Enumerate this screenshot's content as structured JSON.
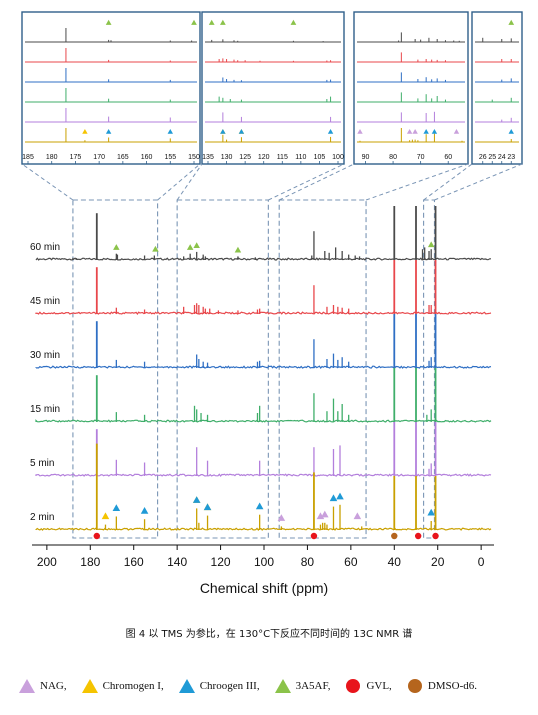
{
  "chart_data": {
    "type": "line",
    "xlabel": "Chemical shift (ppm)",
    "xlim": [
      205,
      -5
    ],
    "x_ticks": [
      200,
      180,
      160,
      140,
      120,
      100,
      80,
      60,
      40,
      20,
      0
    ],
    "series": [
      {
        "name": "60 min",
        "color": "#4a4a4a"
      },
      {
        "name": "45 min",
        "color": "#e8474b"
      },
      {
        "name": "30 min",
        "color": "#2f6fc4"
      },
      {
        "name": "15 min",
        "color": "#3fae6a"
      },
      {
        "name": "5 min",
        "color": "#b37fdc"
      },
      {
        "name": "2 min",
        "color": "#c9a000"
      }
    ],
    "peaks": {
      "60 min": [
        [
          188,
          0.12
        ],
        [
          186.5,
          0.1
        ],
        [
          177,
          2.6
        ],
        [
          168,
          0.35
        ],
        [
          167.5,
          0.3
        ],
        [
          155,
          0.25
        ],
        [
          150.5,
          0.25
        ],
        [
          137,
          0.2
        ],
        [
          134,
          0.35
        ],
        [
          131,
          0.45
        ],
        [
          128,
          0.3
        ],
        [
          127,
          0.2
        ],
        [
          112,
          0.2
        ],
        [
          104,
          0.15
        ],
        [
          78,
          0.25
        ],
        [
          77,
          1.6
        ],
        [
          72,
          0.5
        ],
        [
          70,
          0.4
        ],
        [
          67,
          0.7
        ],
        [
          64,
          0.5
        ],
        [
          61,
          0.3
        ],
        [
          58,
          0.25
        ],
        [
          56,
          0.2
        ],
        [
          40,
          3.0
        ],
        [
          30,
          3.0
        ],
        [
          27,
          0.6
        ],
        [
          26,
          0.7
        ],
        [
          24,
          0.5
        ],
        [
          23,
          0.6
        ],
        [
          21,
          3.0
        ]
      ],
      "45 min": [
        [
          177,
          2.6
        ],
        [
          168,
          0.35
        ],
        [
          155,
          0.25
        ],
        [
          137,
          0.4
        ],
        [
          132,
          0.5
        ],
        [
          131,
          0.6
        ],
        [
          130,
          0.5
        ],
        [
          128,
          0.4
        ],
        [
          127,
          0.3
        ],
        [
          125,
          0.3
        ],
        [
          121,
          0.2
        ],
        [
          112,
          0.2
        ],
        [
          103,
          0.25
        ],
        [
          102,
          0.3
        ],
        [
          77,
          1.6
        ],
        [
          71,
          0.4
        ],
        [
          68,
          0.5
        ],
        [
          66,
          0.4
        ],
        [
          64,
          0.35
        ],
        [
          61,
          0.3
        ],
        [
          40,
          3.0
        ],
        [
          30,
          3.0
        ],
        [
          24,
          0.5
        ],
        [
          23,
          0.5
        ],
        [
          21,
          3.0
        ]
      ],
      "30 min": [
        [
          177,
          2.6
        ],
        [
          168,
          0.45
        ],
        [
          155,
          0.35
        ],
        [
          131,
          0.75
        ],
        [
          130,
          0.5
        ],
        [
          128,
          0.35
        ],
        [
          126,
          0.3
        ],
        [
          103,
          0.35
        ],
        [
          102,
          0.4
        ],
        [
          77,
          1.6
        ],
        [
          71,
          0.5
        ],
        [
          68,
          0.8
        ],
        [
          66,
          0.45
        ],
        [
          64,
          0.6
        ],
        [
          61,
          0.35
        ],
        [
          40,
          3.0
        ],
        [
          30,
          3.0
        ],
        [
          24,
          0.4
        ],
        [
          23,
          0.6
        ],
        [
          21,
          3.0
        ]
      ],
      "15 min": [
        [
          177,
          2.6
        ],
        [
          168,
          0.55
        ],
        [
          155,
          0.4
        ],
        [
          132,
          0.9
        ],
        [
          131,
          0.7
        ],
        [
          129,
          0.5
        ],
        [
          126,
          0.4
        ],
        [
          103,
          0.5
        ],
        [
          102,
          0.9
        ],
        [
          77,
          1.6
        ],
        [
          71,
          0.6
        ],
        [
          68,
          1.3
        ],
        [
          66,
          0.6
        ],
        [
          64,
          1.0
        ],
        [
          61,
          0.4
        ],
        [
          40,
          3.0
        ],
        [
          30,
          3.0
        ],
        [
          25,
          0.4
        ],
        [
          23,
          0.7
        ],
        [
          21,
          3.0
        ]
      ],
      "5 min": [
        [
          177,
          2.6
        ],
        [
          168,
          0.9
        ],
        [
          155,
          0.75
        ],
        [
          131,
          1.6
        ],
        [
          126,
          0.85
        ],
        [
          102,
          0.85
        ],
        [
          77,
          1.6
        ],
        [
          68,
          1.5
        ],
        [
          65,
          1.7
        ],
        [
          40,
          3.0
        ],
        [
          30,
          3.0
        ],
        [
          24,
          0.4
        ],
        [
          23,
          0.7
        ],
        [
          21,
          3.0
        ]
      ],
      "2 min": [
        [
          177,
          4.8
        ],
        [
          173,
          0.3
        ],
        [
          168,
          0.75
        ],
        [
          155,
          0.6
        ],
        [
          131,
          1.2
        ],
        [
          130,
          0.4
        ],
        [
          126,
          0.8
        ],
        [
          102,
          0.85
        ],
        [
          92,
          0.2
        ],
        [
          77,
          3.2
        ],
        [
          74,
          0.3
        ],
        [
          73,
          0.4
        ],
        [
          72,
          0.4
        ],
        [
          71,
          0.3
        ],
        [
          68,
          1.3
        ],
        [
          65,
          1.4
        ],
        [
          55,
          0.2
        ],
        [
          40,
          3.0
        ],
        [
          30,
          3.0
        ],
        [
          23,
          0.5
        ],
        [
          21,
          3.0
        ]
      ]
    },
    "markers_2min": [
      {
        "compound": "Chromogen I",
        "ppm": 173
      },
      {
        "compound": "Chroogen III",
        "ppm": 168
      },
      {
        "compound": "Chroogen III",
        "ppm": 155
      },
      {
        "compound": "Chromogen I",
        "ppm": 131
      },
      {
        "compound": "Chroogen III",
        "ppm": 131
      },
      {
        "compound": "Chromogen I",
        "ppm": 126
      },
      {
        "compound": "Chroogen III",
        "ppm": 126
      },
      {
        "compound": "Chroogen III",
        "ppm": 102
      },
      {
        "compound": "NAG",
        "ppm": 92
      },
      {
        "compound": "NAG",
        "ppm": 74
      },
      {
        "compound": "NAG",
        "ppm": 72
      },
      {
        "compound": "Chroogen III",
        "ppm": 68
      },
      {
        "compound": "Chroogen III",
        "ppm": 65
      },
      {
        "compound": "NAG",
        "ppm": 57
      },
      {
        "compound": "Chroogen III",
        "ppm": 23
      }
    ],
    "markers_60min": [
      {
        "compound": "3A5AF",
        "ppm": 168
      },
      {
        "compound": "3A5AF",
        "ppm": 150
      },
      {
        "compound": "3A5AF",
        "ppm": 134
      },
      {
        "compound": "3A5AF",
        "ppm": 131
      },
      {
        "compound": "3A5AF",
        "ppm": 112
      },
      {
        "compound": "3A5AF",
        "ppm": 23
      }
    ],
    "reference_dots": [
      {
        "compound": "GVL",
        "ppm": 177
      },
      {
        "compound": "GVL",
        "ppm": 77
      },
      {
        "compound": "DMSO-d6",
        "ppm": 40
      },
      {
        "compound": "GVL",
        "ppm": 29
      },
      {
        "compound": "GVL",
        "ppm": 21
      }
    ],
    "insets": [
      {
        "range": [
          185,
          150
        ],
        "ticks": [
          185,
          180,
          175,
          170,
          165,
          160,
          155,
          150
        ]
      },
      {
        "range": [
          135,
          100
        ],
        "ticks": [
          135,
          130,
          125,
          120,
          115,
          110,
          105,
          100
        ]
      },
      {
        "range": [
          92,
          55
        ],
        "ticks": [
          90,
          80,
          70,
          60
        ]
      },
      {
        "range": [
          26.5,
          22.5
        ],
        "ticks": [
          26,
          25,
          24,
          23
        ]
      }
    ]
  },
  "caption": "图 4 以 TMS 为参比，在 130°C下反应不同时间的 13C NMR 谱",
  "legend": [
    {
      "label": "NAG,",
      "color": "#c9a0dc",
      "shape": "triangle"
    },
    {
      "label": "Chromogen I,",
      "color": "#f5c400",
      "shape": "triangle"
    },
    {
      "label": "Chroogen III,",
      "color": "#1f9ad6",
      "shape": "triangle"
    },
    {
      "label": "3A5AF,",
      "color": "#8bc34a",
      "shape": "triangle"
    },
    {
      "label": "GVL,",
      "color": "#e8141b",
      "shape": "circle"
    },
    {
      "label": "DMSO-d6.",
      "color": "#b5651d",
      "shape": "circle"
    }
  ]
}
